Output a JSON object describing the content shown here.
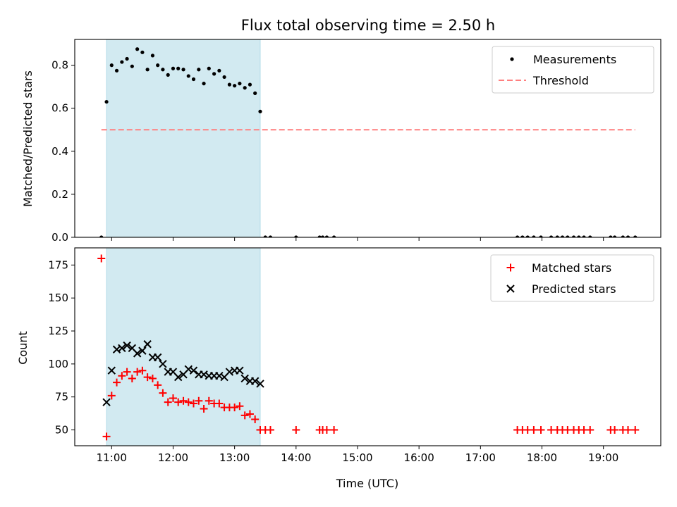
{
  "chart_data": [
    {
      "type": "scatter",
      "title": "Flux total observing time = 2.50 h",
      "xlabel": "",
      "ylabel": "Matched/Predicted stars",
      "xlim_hours": [
        10.4,
        19.933
      ],
      "ylim": [
        0,
        0.92
      ],
      "yticks": [
        0.0,
        0.2,
        0.4,
        0.6,
        0.8
      ],
      "ytick_labels": [
        "0.0",
        "0.2",
        "0.4",
        "0.6",
        "0.8"
      ],
      "highlight_span_hours": [
        10.917,
        13.417
      ],
      "highlight_color": "#add8e6",
      "legend_position": "upper right",
      "series": [
        {
          "name": "Measurements",
          "marker": "dot",
          "color": "#000000",
          "points": [
            [
              10.833,
              0.0
            ],
            [
              10.917,
              0.63
            ],
            [
              11.0,
              0.8
            ],
            [
              11.083,
              0.775
            ],
            [
              11.167,
              0.815
            ],
            [
              11.25,
              0.83
            ],
            [
              11.333,
              0.795
            ],
            [
              11.417,
              0.875
            ],
            [
              11.5,
              0.86
            ],
            [
              11.583,
              0.78
            ],
            [
              11.667,
              0.845
            ],
            [
              11.75,
              0.8
            ],
            [
              11.833,
              0.78
            ],
            [
              11.917,
              0.755
            ],
            [
              12.0,
              0.785
            ],
            [
              12.083,
              0.785
            ],
            [
              12.167,
              0.78
            ],
            [
              12.25,
              0.75
            ],
            [
              12.333,
              0.735
            ],
            [
              12.417,
              0.78
            ],
            [
              12.5,
              0.715
            ],
            [
              12.583,
              0.785
            ],
            [
              12.667,
              0.76
            ],
            [
              12.75,
              0.775
            ],
            [
              12.833,
              0.745
            ],
            [
              12.917,
              0.71
            ],
            [
              13.0,
              0.705
            ],
            [
              13.083,
              0.715
            ],
            [
              13.167,
              0.695
            ],
            [
              13.25,
              0.71
            ],
            [
              13.333,
              0.67
            ],
            [
              13.417,
              0.585
            ],
            [
              13.5,
              0.0
            ],
            [
              13.583,
              0.0
            ],
            [
              14.0,
              0.0
            ],
            [
              14.383,
              0.0
            ],
            [
              14.433,
              0.0
            ],
            [
              14.5,
              0.0
            ],
            [
              14.617,
              0.0
            ],
            [
              17.6,
              0.0
            ],
            [
              17.683,
              0.0
            ],
            [
              17.767,
              0.0
            ],
            [
              17.867,
              0.0
            ],
            [
              17.983,
              0.0
            ],
            [
              18.15,
              0.0
            ],
            [
              18.25,
              0.0
            ],
            [
              18.333,
              0.0
            ],
            [
              18.417,
              0.0
            ],
            [
              18.517,
              0.0
            ],
            [
              18.6,
              0.0
            ],
            [
              18.683,
              0.0
            ],
            [
              18.783,
              0.0
            ],
            [
              19.117,
              0.0
            ],
            [
              19.183,
              0.0
            ],
            [
              19.317,
              0.0
            ],
            [
              19.4,
              0.0
            ],
            [
              19.517,
              0.0
            ]
          ]
        },
        {
          "name": "Threshold",
          "marker": "dashed-line",
          "color": "#ff7f7f",
          "points": [
            [
              10.833,
              0.5
            ],
            [
              19.517,
              0.5
            ]
          ]
        }
      ]
    },
    {
      "type": "scatter",
      "title": "",
      "xlabel": "Time (UTC)",
      "ylabel": "Count",
      "xlim_hours": [
        10.4,
        19.933
      ],
      "ylim": [
        38,
        188
      ],
      "yticks": [
        50,
        75,
        100,
        125,
        150,
        175
      ],
      "ytick_labels": [
        "50",
        "75",
        "100",
        "125",
        "150",
        "175"
      ],
      "xticks_hours": [
        11,
        12,
        13,
        14,
        15,
        16,
        17,
        18,
        19
      ],
      "xtick_labels": [
        "11:00",
        "12:00",
        "13:00",
        "14:00",
        "15:00",
        "16:00",
        "17:00",
        "18:00",
        "19:00"
      ],
      "highlight_span_hours": [
        10.917,
        13.417
      ],
      "highlight_color": "#add8e6",
      "legend_position": "upper right",
      "series": [
        {
          "name": "Matched stars",
          "marker": "plus",
          "color": "#ff0000",
          "points": [
            [
              10.833,
              180
            ],
            [
              10.917,
              45
            ],
            [
              11.0,
              76
            ],
            [
              11.083,
              86
            ],
            [
              11.167,
              91
            ],
            [
              11.25,
              94
            ],
            [
              11.333,
              89
            ],
            [
              11.417,
              94
            ],
            [
              11.5,
              95
            ],
            [
              11.583,
              90
            ],
            [
              11.667,
              89
            ],
            [
              11.75,
              84
            ],
            [
              11.833,
              78
            ],
            [
              11.917,
              71
            ],
            [
              12.0,
              74
            ],
            [
              12.083,
              71
            ],
            [
              12.167,
              72
            ],
            [
              12.25,
              71
            ],
            [
              12.333,
              70
            ],
            [
              12.417,
              72
            ],
            [
              12.5,
              66
            ],
            [
              12.583,
              72
            ],
            [
              12.667,
              70
            ],
            [
              12.75,
              70
            ],
            [
              12.833,
              67
            ],
            [
              12.917,
              67
            ],
            [
              13.0,
              67
            ],
            [
              13.083,
              68
            ],
            [
              13.167,
              61
            ],
            [
              13.25,
              62
            ],
            [
              13.333,
              58
            ],
            [
              13.417,
              50
            ],
            [
              13.5,
              50
            ],
            [
              13.583,
              50
            ],
            [
              14.0,
              50
            ],
            [
              14.383,
              50
            ],
            [
              14.433,
              50
            ],
            [
              14.5,
              50
            ],
            [
              14.617,
              50
            ],
            [
              17.6,
              50
            ],
            [
              17.683,
              50
            ],
            [
              17.767,
              50
            ],
            [
              17.867,
              50
            ],
            [
              17.983,
              50
            ],
            [
              18.15,
              50
            ],
            [
              18.25,
              50
            ],
            [
              18.333,
              50
            ],
            [
              18.417,
              50
            ],
            [
              18.517,
              50
            ],
            [
              18.6,
              50
            ],
            [
              18.683,
              50
            ],
            [
              18.783,
              50
            ],
            [
              19.117,
              50
            ],
            [
              19.183,
              50
            ],
            [
              19.317,
              50
            ],
            [
              19.4,
              50
            ],
            [
              19.517,
              50
            ]
          ]
        },
        {
          "name": "Predicted stars",
          "marker": "x",
          "color": "#000000",
          "points": [
            [
              10.917,
              71
            ],
            [
              11.0,
              95
            ],
            [
              11.083,
              111
            ],
            [
              11.167,
              112
            ],
            [
              11.25,
              114
            ],
            [
              11.333,
              112
            ],
            [
              11.417,
              108
            ],
            [
              11.5,
              110
            ],
            [
              11.583,
              115
            ],
            [
              11.667,
              105
            ],
            [
              11.75,
              105
            ],
            [
              11.833,
              100
            ],
            [
              11.917,
              94
            ],
            [
              12.0,
              94
            ],
            [
              12.083,
              90
            ],
            [
              12.167,
              92
            ],
            [
              12.25,
              96
            ],
            [
              12.333,
              95
            ],
            [
              12.417,
              92
            ],
            [
              12.5,
              92
            ],
            [
              12.583,
              91
            ],
            [
              12.667,
              91
            ],
            [
              12.75,
              91
            ],
            [
              12.833,
              90
            ],
            [
              12.917,
              94
            ],
            [
              13.0,
              95
            ],
            [
              13.083,
              95
            ],
            [
              13.167,
              89
            ],
            [
              13.25,
              87
            ],
            [
              13.333,
              87
            ],
            [
              13.417,
              85
            ]
          ]
        }
      ]
    }
  ]
}
